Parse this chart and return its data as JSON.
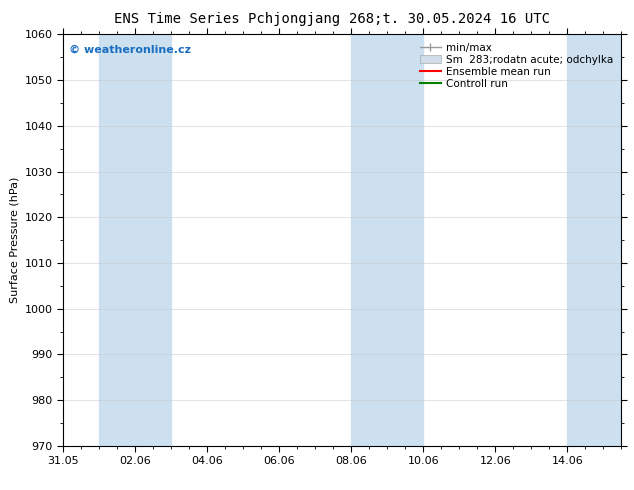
{
  "title_left": "ENS Time Series Pchjongjang",
  "title_right": "268;t. 30.05.2024 16 UTC",
  "ylabel": "Surface Pressure (hPa)",
  "ylim": [
    970,
    1060
  ],
  "yticks": [
    970,
    980,
    990,
    1000,
    1010,
    1020,
    1030,
    1040,
    1050,
    1060
  ],
  "xtick_labels": [
    "31.05",
    "02.06",
    "04.06",
    "06.06",
    "08.06",
    "10.06",
    "12.06",
    "14.06"
  ],
  "xtick_positions": [
    0,
    2,
    4,
    6,
    8,
    10,
    12,
    14
  ],
  "xlim": [
    0,
    15.5
  ],
  "shaded_bands": [
    {
      "x_start": 1.0,
      "x_end": 3.0
    },
    {
      "x_start": 8.0,
      "x_end": 10.0
    },
    {
      "x_start": 14.0,
      "x_end": 15.5
    }
  ],
  "shade_color": "#cce0f0",
  "background_color": "#ffffff",
  "watermark_text": "© weatheronline.cz",
  "watermark_color": "#1a6ec0",
  "legend_entries": [
    {
      "label": "min/max",
      "color": "#999999",
      "style": "errorbar"
    },
    {
      "label": "Sm  283;rodatn acute; odchylka",
      "color": "#cccccc",
      "style": "patch"
    },
    {
      "label": "Ensemble mean run",
      "color": "#ff0000",
      "style": "line"
    },
    {
      "label": "Controll run",
      "color": "#008000",
      "style": "line"
    }
  ],
  "title_fontsize": 10,
  "tick_fontsize": 8,
  "ylabel_fontsize": 8,
  "legend_fontsize": 7.5,
  "watermark_fontsize": 8
}
